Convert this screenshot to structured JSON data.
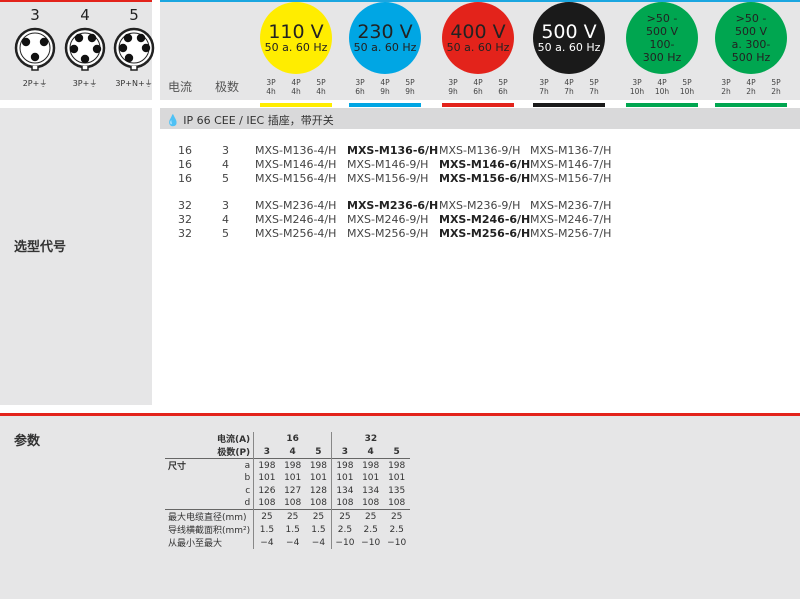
{
  "sockets": [
    {
      "poles": "3",
      "label": "2P+⏚"
    },
    {
      "poles": "4",
      "label": "3P+⏚"
    },
    {
      "poles": "5",
      "label": "3P+N+⏚"
    }
  ],
  "header": {
    "current": "电流",
    "poles": "极数"
  },
  "voltages": [
    {
      "line1": "110 V",
      "line2": "50 a. 60 Hz",
      "color": "#ffed00",
      "text": "#222",
      "phases": [
        [
          "3P",
          "4h"
        ],
        [
          "4P",
          "4h"
        ],
        [
          "5P",
          "4h"
        ]
      ]
    },
    {
      "line1": "230 V",
      "line2": "50 a. 60 Hz",
      "color": "#00a6e4",
      "text": "#222",
      "phases": [
        [
          "3P",
          "6h"
        ],
        [
          "4P",
          "9h"
        ],
        [
          "5P",
          "9h"
        ]
      ]
    },
    {
      "line1": "400 V",
      "line2": "50 a. 60 Hz",
      "color": "#e3231b",
      "text": "#222",
      "phases": [
        [
          "3P",
          "9h"
        ],
        [
          "4P",
          "6h"
        ],
        [
          "5P",
          "6h"
        ]
      ]
    },
    {
      "line1": "500 V",
      "line2": "50 a. 60 Hz",
      "color": "#1a1a1a",
      "text": "#fff",
      "phases": [
        [
          "3P",
          "7h"
        ],
        [
          "4P",
          "7h"
        ],
        [
          "5P",
          "7h"
        ]
      ]
    },
    {
      "lines": [
        ">50 -",
        "500 V",
        "100-",
        "300 Hz"
      ],
      "color": "#00a650",
      "text": "#222",
      "phases": [
        [
          "3P",
          "10h"
        ],
        [
          "4P",
          "10h"
        ],
        [
          "5P",
          "10h"
        ]
      ]
    },
    {
      "lines": [
        ">50 -",
        "500 V",
        "a. 300-",
        "500 Hz"
      ],
      "color": "#00a650",
      "text": "#222",
      "phases": [
        [
          "3P",
          "2h"
        ],
        [
          "4P",
          "2h"
        ],
        [
          "5P",
          "2h"
        ]
      ]
    }
  ],
  "section_title": "IP 66 CEE / IEC 插座，带开关",
  "selection_label": "选型代号",
  "products": [
    {
      "current": "16",
      "poles": "3",
      "codes": [
        "MXS-M136-4/H",
        "MXS-M136-6/H",
        "MXS-M136-9/H",
        "MXS-M136-7/H"
      ],
      "bold": 1
    },
    {
      "current": "16",
      "poles": "4",
      "codes": [
        "MXS-M146-4/H",
        "MXS-M146-9/H",
        "MXS-M146-6/H",
        "MXS-M146-7/H"
      ],
      "bold": 2
    },
    {
      "current": "16",
      "poles": "5",
      "codes": [
        "MXS-M156-4/H",
        "MXS-M156-9/H",
        "MXS-M156-6/H",
        "MXS-M156-7/H"
      ],
      "bold": 2
    },
    {
      "current": "32",
      "poles": "3",
      "codes": [
        "MXS-M236-4/H",
        "MXS-M236-6/H",
        "MXS-M236-9/H",
        "MXS-M236-7/H"
      ],
      "bold": 1
    },
    {
      "current": "32",
      "poles": "4",
      "codes": [
        "MXS-M246-4/H",
        "MXS-M246-9/H",
        "MXS-M246-6/H",
        "MXS-M246-7/H"
      ],
      "bold": 2
    },
    {
      "current": "32",
      "poles": "5",
      "codes": [
        "MXS-M256-4/H",
        "MXS-M256-9/H",
        "MXS-M256-6/H",
        "MXS-M256-7/H"
      ],
      "bold": 2
    }
  ],
  "params": {
    "title": "参数",
    "current_label": "电流(A)",
    "poles_label": "极数(P)",
    "currents": [
      "16",
      "32"
    ],
    "poles": [
      "3",
      "4",
      "5",
      "3",
      "4",
      "5"
    ],
    "dim_label": "尺寸",
    "rows": [
      {
        "label": "",
        "key": "a",
        "values": [
          "198",
          "198",
          "198",
          "198",
          "198",
          "198"
        ]
      },
      {
        "label": "",
        "key": "b",
        "values": [
          "101",
          "101",
          "101",
          "101",
          "101",
          "101"
        ]
      },
      {
        "label": "",
        "key": "c",
        "values": [
          "126",
          "127",
          "128",
          "134",
          "134",
          "135"
        ]
      },
      {
        "label": "",
        "key": "d",
        "values": [
          "108",
          "108",
          "108",
          "108",
          "108",
          "108"
        ]
      },
      {
        "label": "最大电缆直径(mm)",
        "key": "",
        "values": [
          "25",
          "25",
          "25",
          "25",
          "25",
          "25"
        ]
      },
      {
        "label": "导线横截面积(mm²)",
        "key": "",
        "values": [
          "1.5",
          "1.5",
          "1.5",
          "2.5",
          "2.5",
          "2.5"
        ]
      },
      {
        "label": "从最小至最大",
        "key": "",
        "values": [
          "−4",
          "−4",
          "−4",
          "−10",
          "−10",
          "−10"
        ]
      }
    ]
  }
}
